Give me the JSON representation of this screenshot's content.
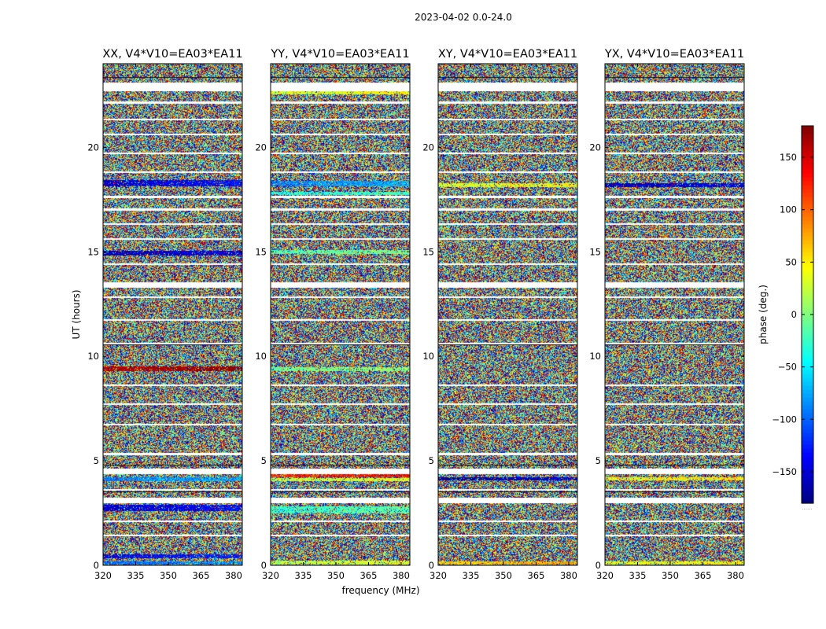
{
  "chart_data": {
    "type": "heatmap",
    "suptitle": "2023-04-02 0.0-24.0",
    "xlabel": "frequency (MHz)",
    "ylabel": "UT (hours)",
    "xlim": [
      320,
      384
    ],
    "ylim": [
      0,
      24
    ],
    "xticks": [
      320,
      335,
      350,
      365,
      380
    ],
    "xtick_labels": [
      "320",
      "335",
      "350",
      "365",
      "380"
    ],
    "yticks": [
      0,
      5,
      10,
      15,
      20
    ],
    "ytick_labels": [
      "0",
      "5",
      "10",
      "15",
      "20"
    ],
    "colormap": "jet",
    "colorbar": {
      "label": "phase (deg.)",
      "range": [
        -180,
        180
      ],
      "ticks": [
        150,
        100,
        50,
        0,
        -50,
        -100,
        -150
      ],
      "tick_labels": [
        "150",
        "100",
        "50",
        "0",
        "−50",
        "−100",
        "−150"
      ],
      "footer": "......"
    },
    "panels": [
      {
        "title": "XX, V4*V10=EA03*EA11",
        "features": [
          {
            "t0": 18.15,
            "t1": 18.45,
            "phase": -150
          },
          {
            "t0": 14.85,
            "t1": 15.05,
            "phase": -160
          },
          {
            "t0": 9.3,
            "t1": 9.55,
            "phase": 160
          },
          {
            "t0": 4.05,
            "t1": 4.25,
            "phase": -90
          },
          {
            "t0": 2.6,
            "t1": 2.9,
            "phase": -150
          },
          {
            "t0": 0.35,
            "t1": 0.55,
            "phase": -140
          },
          {
            "t0": 0.05,
            "t1": 0.2,
            "phase": -100
          }
        ]
      },
      {
        "title": "YY, V4*V10=EA03*EA11",
        "features": [
          {
            "t0": 22.55,
            "t1": 22.75,
            "phase": 30
          },
          {
            "t0": 18.15,
            "t1": 18.4,
            "phase": -90
          },
          {
            "t0": 17.75,
            "t1": 17.9,
            "phase": -40
          },
          {
            "t0": 14.9,
            "t1": 15.1,
            "phase": -20
          },
          {
            "t0": 9.3,
            "t1": 9.5,
            "phase": -10
          },
          {
            "t0": 4.25,
            "t1": 4.4,
            "phase": 120
          },
          {
            "t0": 4.05,
            "t1": 4.2,
            "phase": 20
          },
          {
            "t0": 2.5,
            "t1": 2.85,
            "phase": -30
          },
          {
            "t0": 0.05,
            "t1": 0.25,
            "phase": 20
          }
        ]
      },
      {
        "title": "XY, V4*V10=EA03*EA11",
        "features": [
          {
            "t0": 18.1,
            "t1": 18.3,
            "phase": 30
          },
          {
            "t0": 4.1,
            "t1": 4.25,
            "phase": -170
          },
          {
            "t0": 0.05,
            "t1": 0.2,
            "phase": 60
          }
        ]
      },
      {
        "title": "YX, V4*V10=EA03*EA11",
        "features": [
          {
            "t0": 18.1,
            "t1": 18.3,
            "phase": -160
          },
          {
            "t0": 4.1,
            "t1": 4.25,
            "phase": 40
          },
          {
            "t0": 0.05,
            "t1": 0.2,
            "phase": 30
          }
        ]
      }
    ],
    "flagged_intervals_hours": [
      [
        22.7,
        23.1
      ],
      [
        22.1,
        22.2
      ],
      [
        21.3,
        21.38
      ],
      [
        20.6,
        20.68
      ],
      [
        19.7,
        19.78
      ],
      [
        18.8,
        18.88
      ],
      [
        17.6,
        17.7
      ],
      [
        17.0,
        17.1
      ],
      [
        16.3,
        16.38
      ],
      [
        15.6,
        15.68
      ],
      [
        14.4,
        14.48
      ],
      [
        13.3,
        13.55
      ],
      [
        12.8,
        12.88
      ],
      [
        11.7,
        11.78
      ],
      [
        10.6,
        10.68
      ],
      [
        8.6,
        8.68
      ],
      [
        7.7,
        7.78
      ],
      [
        6.7,
        6.78
      ],
      [
        5.3,
        5.38
      ],
      [
        4.4,
        4.65
      ],
      [
        3.0,
        3.25
      ],
      [
        3.6,
        3.68
      ],
      [
        2.1,
        2.18
      ],
      [
        1.4,
        1.48
      ]
    ]
  }
}
